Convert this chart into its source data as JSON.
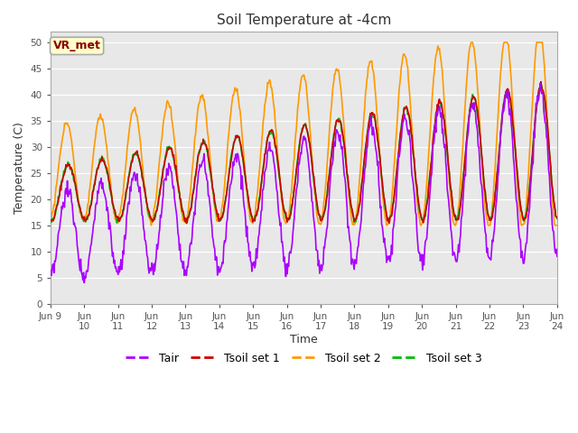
{
  "title": "Soil Temperature at -4cm",
  "xlabel": "Time",
  "ylabel": "Temperature (C)",
  "ylim": [
    0,
    52
  ],
  "yticks": [
    0,
    5,
    10,
    15,
    20,
    25,
    30,
    35,
    40,
    45,
    50
  ],
  "xtick_labels": [
    "Jun 9",
    "Jun\n10",
    "Jun\n11",
    "Jun\n12",
    "Jun\n13",
    "Jun\n14",
    "Jun\n15",
    "Jun\n16",
    "Jun\n17",
    "Jun\n18",
    "Jun\n19",
    "Jun\n20",
    "Jun\n21",
    "Jun\n22",
    "Jun\n23",
    "Jun\n24"
  ],
  "annotation_text": "VR_met",
  "annotation_bg": "#ffffcc",
  "annotation_border": "#aaaaaa",
  "annotation_fg": "#880000",
  "colors": {
    "Tair": "#aa00ff",
    "Tsoil1": "#cc0000",
    "Tsoil2": "#ff9900",
    "Tsoil3": "#00bb00"
  },
  "plot_bg_color": "#e8e8e8",
  "line_width": 1.2,
  "n_days": 15,
  "points_per_day": 48
}
